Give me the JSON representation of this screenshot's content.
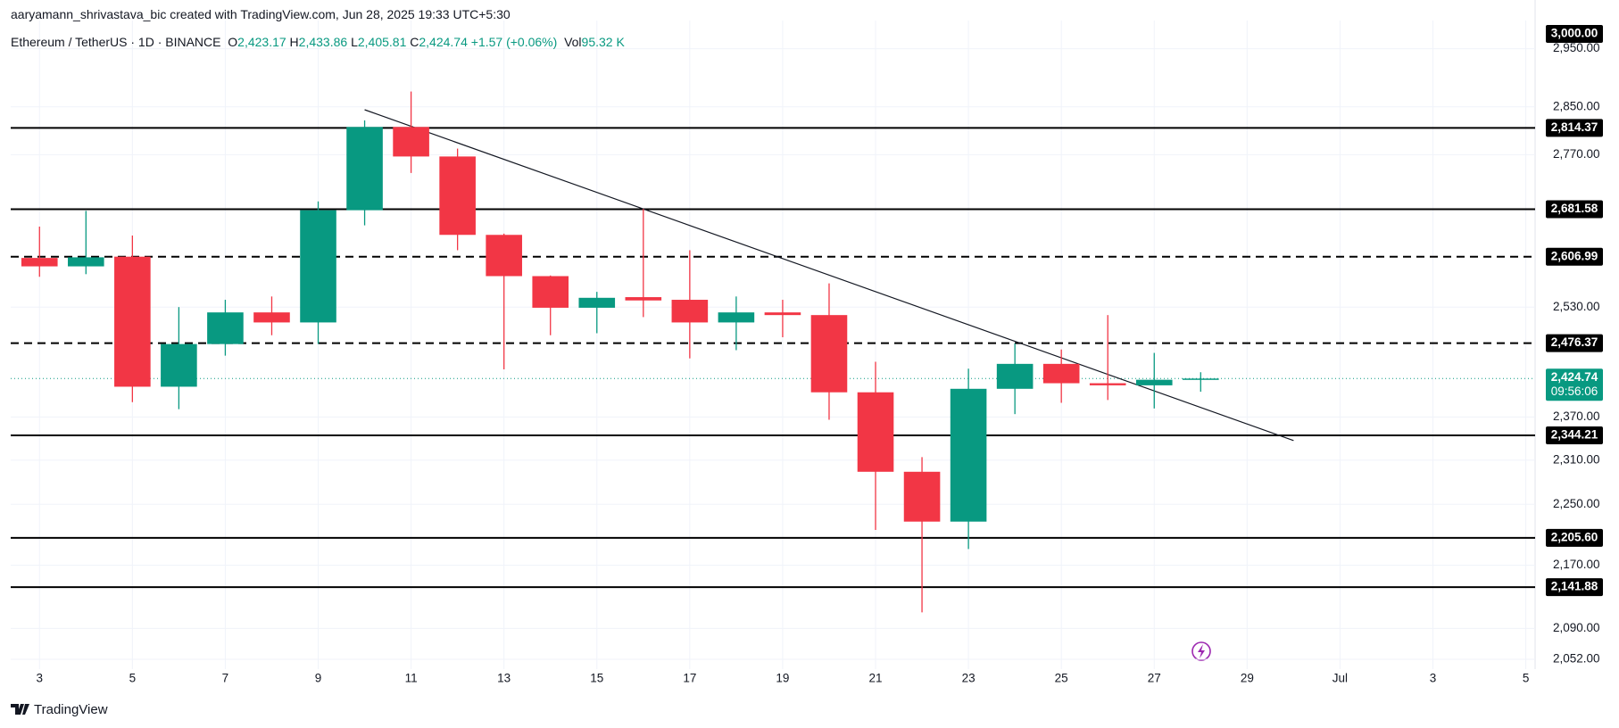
{
  "header": {
    "attribution": "aaryamann_shrivastava_bic created with TradingView.com, Jun 28, 2025 19:33 UTC+5:30",
    "symbol": "Ethereum / TetherUS · 1D · BINANCE",
    "ohlc": [
      {
        "key": "O",
        "value": "2,423.17"
      },
      {
        "key": "H",
        "value": "2,433.86"
      },
      {
        "key": "L",
        "value": "2,405.81"
      },
      {
        "key": "C",
        "value": "2,424.74"
      }
    ],
    "change": "+1.57 (+0.06%)",
    "volume_key": "Vol",
    "volume": "95.32 K"
  },
  "chart_data": {
    "type": "candlestick",
    "x": [
      3,
      4,
      5,
      6,
      7,
      8,
      9,
      10,
      11,
      12,
      13,
      14,
      15,
      16,
      17,
      18,
      19,
      20,
      21,
      22,
      23,
      24,
      25,
      26,
      27,
      28
    ],
    "open": [
      2605,
      2592,
      2607,
      2413,
      2475,
      2522,
      2507,
      2680,
      2816,
      2767,
      2641,
      2577,
      2529,
      2545,
      2541,
      2507,
      2522,
      2518,
      2405,
      2294,
      2227,
      2410,
      2446,
      2418,
      2415,
      2423.17
    ],
    "high": [
      2654,
      2679,
      2640,
      2530,
      2541,
      2546,
      2694,
      2827,
      2876,
      2780,
      2643,
      2578,
      2553,
      2682,
      2617,
      2546,
      2541,
      2566,
      2449,
      2314,
      2439,
      2476,
      2467,
      2518,
      2462,
      2433.86
    ],
    "low": [
      2576,
      2580,
      2391,
      2381,
      2458,
      2488,
      2475,
      2656,
      2740,
      2617,
      2438,
      2488,
      2491,
      2515,
      2454,
      2466,
      2485,
      2366,
      2216,
      2110,
      2191,
      2374,
      2390,
      2394,
      2382,
      2405.81
    ],
    "close": [
      2592,
      2606,
      2413,
      2475,
      2522,
      2507,
      2680,
      2816,
      2767,
      2641,
      2577,
      2529,
      2544,
      2540,
      2507,
      2522,
      2518,
      2405,
      2294,
      2227,
      2410,
      2446,
      2418,
      2415,
      2423,
      2424.74
    ],
    "up_color": "#089981",
    "down_color": "#f23645",
    "xlim": [
      2.38,
      35.2
    ],
    "xticks": [
      3,
      5,
      7,
      9,
      11,
      13,
      15,
      17,
      19,
      21,
      23,
      25,
      27,
      29,
      {
        "value": 31,
        "label": "Jul"
      },
      {
        "value": 33,
        "label": "3"
      },
      {
        "value": 35,
        "label": "5"
      }
    ],
    "ylim": [
      2040,
      3000
    ],
    "log_scale": true,
    "yticks": [
      {
        "value": 2950,
        "label": "2,950.00"
      },
      {
        "value": 2850,
        "label": "2,850.00"
      },
      {
        "value": 2770,
        "label": "2,770.00"
      },
      {
        "value": 2530,
        "label": "2,530.00"
      },
      {
        "value": 2370,
        "label": "2,370.00"
      },
      {
        "value": 2310,
        "label": "2,310.00"
      },
      {
        "value": 2250,
        "label": "2,250.00"
      },
      {
        "value": 2170,
        "label": "2,170.00"
      },
      {
        "value": 2090,
        "label": "2,090.00"
      },
      {
        "value": 2052,
        "label": "2,052.00"
      }
    ],
    "levels": [
      {
        "value": 3000,
        "label": "3,000.00",
        "style": "none"
      },
      {
        "value": 2814.37,
        "label": "2,814.37",
        "style": "solid"
      },
      {
        "value": 2681.58,
        "label": "2,681.58",
        "style": "solid"
      },
      {
        "value": 2606.99,
        "label": "2,606.99",
        "style": "dashed"
      },
      {
        "value": 2476.37,
        "label": "2,476.37",
        "style": "dashed"
      },
      {
        "value": 2344.21,
        "label": "2,344.21",
        "style": "solid"
      },
      {
        "value": 2205.6,
        "label": "2,205.60",
        "style": "solid"
      },
      {
        "value": 2141.88,
        "label": "2,141.88",
        "style": "solid"
      }
    ],
    "trendline": {
      "x": [
        10,
        30
      ],
      "y": [
        2845,
        2337
      ]
    },
    "last_price": {
      "value": 2424.74,
      "label": "2,424.74",
      "countdown": "09:56:06",
      "color": "#089981"
    },
    "grid": true
  },
  "footer": {
    "brand": "TradingView"
  }
}
